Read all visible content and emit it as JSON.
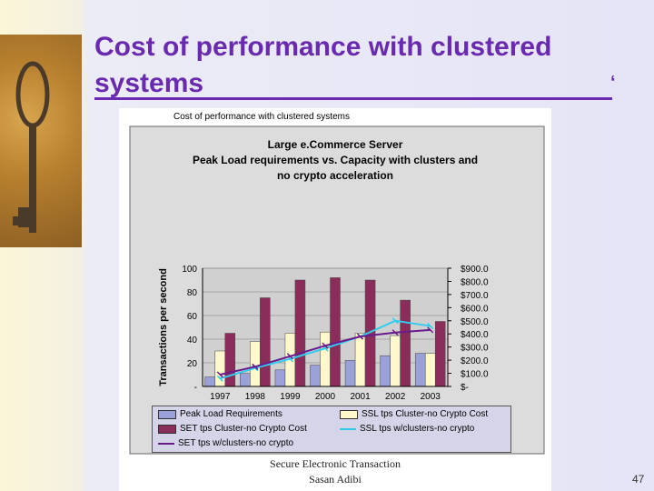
{
  "slide": {
    "title": "Cost of performance with clustered systems",
    "number": "47",
    "footer_line1": "Secure Electronic Transaction",
    "footer_line2": "Sasan Adibi"
  },
  "chart_data": {
    "type": "bar",
    "header": "Cost of performance with clustered systems",
    "title": "Large e.Commerce Server\nPeak Load requirements vs. Capacity with clusters and\nno crypto acceleration",
    "title_lines": [
      "Large e.Commerce Server",
      "Peak Load requirements vs. Capacity with clusters and",
      "no crypto acceleration"
    ],
    "ylabel": "Transactions per second",
    "ylim": [
      0,
      100
    ],
    "yticks": [
      "-",
      "20",
      "40",
      "60",
      "80",
      "100"
    ],
    "y2lim": [
      0,
      900
    ],
    "y2ticks": [
      "$-",
      "$100.0",
      "$200.0",
      "$300.0",
      "$400.0",
      "$500.0",
      "$600.0",
      "$700.0",
      "$800.0",
      "$900.0"
    ],
    "categories": [
      "1997",
      "1998",
      "1999",
      "2000",
      "2001",
      "2002",
      "2003"
    ],
    "series": [
      {
        "name": "Peak Load Requirements",
        "kind": "bar",
        "color": "#9aa0d8",
        "values": [
          8,
          11,
          14,
          18,
          22,
          26,
          28
        ]
      },
      {
        "name": "SSL tps Cluster-no Crypto Cost",
        "kind": "bar",
        "color": "#fff8cc",
        "values": [
          30,
          38,
          45,
          46,
          45,
          43,
          28
        ]
      },
      {
        "name": "SET tps Cluster-no Crypto Cost",
        "kind": "bar",
        "color": "#8b2d5a",
        "values": [
          45,
          75,
          90,
          92,
          90,
          73,
          55
        ]
      },
      {
        "name": "SSL tps w/clusters-no crypto",
        "kind": "line",
        "axis": "y2",
        "color": "#33ccee",
        "values": [
          60,
          140,
          210,
          290,
          380,
          500,
          460
        ]
      },
      {
        "name": "SET tps w/clusters-no crypto",
        "kind": "line",
        "axis": "y2",
        "color": "#6a1a8a",
        "values": [
          90,
          150,
          230,
          310,
          380,
          410,
          430
        ]
      }
    ],
    "legend": "bottom"
  }
}
